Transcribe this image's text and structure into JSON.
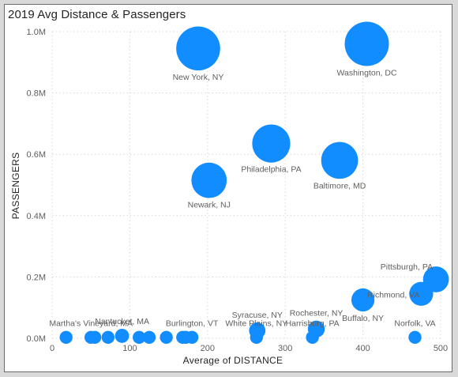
{
  "title": "2019 Avg Distance & Passengers",
  "chart_data": {
    "type": "scatter",
    "title": "2019 Avg Distance & Passengers",
    "xlabel": "Average of DISTANCE",
    "ylabel": "PASSENGERS",
    "xlim": [
      0,
      500
    ],
    "ylim": [
      0,
      1000000
    ],
    "x_ticks": [
      "0",
      "100",
      "200",
      "300",
      "400",
      "500"
    ],
    "y_ticks": [
      "0.0M",
      "0.2M",
      "0.4M",
      "0.6M",
      "0.8M",
      "1.0M"
    ],
    "grid": true,
    "bubble_color": "#118dff",
    "points": [
      {
        "label": "New York, NY",
        "x": 188,
        "y": 945000
      },
      {
        "label": "Washington, DC",
        "x": 405,
        "y": 960000
      },
      {
        "label": "Philadelphia, PA",
        "x": 282,
        "y": 635000
      },
      {
        "label": "Baltimore, MD",
        "x": 370,
        "y": 580000
      },
      {
        "label": "Newark, NJ",
        "x": 202,
        "y": 515000
      },
      {
        "label": "Pittsburgh, PA",
        "x": 494,
        "y": 192000
      },
      {
        "label": "Richmond, VA",
        "x": 475,
        "y": 145000
      },
      {
        "label": "Buffalo, NY",
        "x": 400,
        "y": 125000
      },
      {
        "label": "Nantucket, MA",
        "x": 90,
        "y": 8000
      },
      {
        "label": "Martha's Vineyard, MA",
        "x": 50,
        "y": 3000
      },
      {
        "label": "Burlington, VT",
        "x": 180,
        "y": 3000
      },
      {
        "label": "White Plains, NY",
        "x": 263,
        "y": 3000
      },
      {
        "label": "Syracuse, NY",
        "x": 264,
        "y": 25000
      },
      {
        "label": "Harrisburg, PA",
        "x": 335,
        "y": 3000
      },
      {
        "label": "Rochester, NY",
        "x": 340,
        "y": 30000
      },
      {
        "label": "Norfolk, VA",
        "x": 467,
        "y": 3000
      },
      {
        "label": "",
        "x": 18,
        "y": 3000
      },
      {
        "label": "",
        "x": 55,
        "y": 3000
      },
      {
        "label": "",
        "x": 72,
        "y": 3000
      },
      {
        "label": "",
        "x": 112,
        "y": 3000
      },
      {
        "label": "",
        "x": 125,
        "y": 3000
      },
      {
        "label": "",
        "x": 147,
        "y": 3000
      },
      {
        "label": "",
        "x": 168,
        "y": 3000
      },
      {
        "label": "",
        "x": 172,
        "y": 3000
      }
    ]
  }
}
